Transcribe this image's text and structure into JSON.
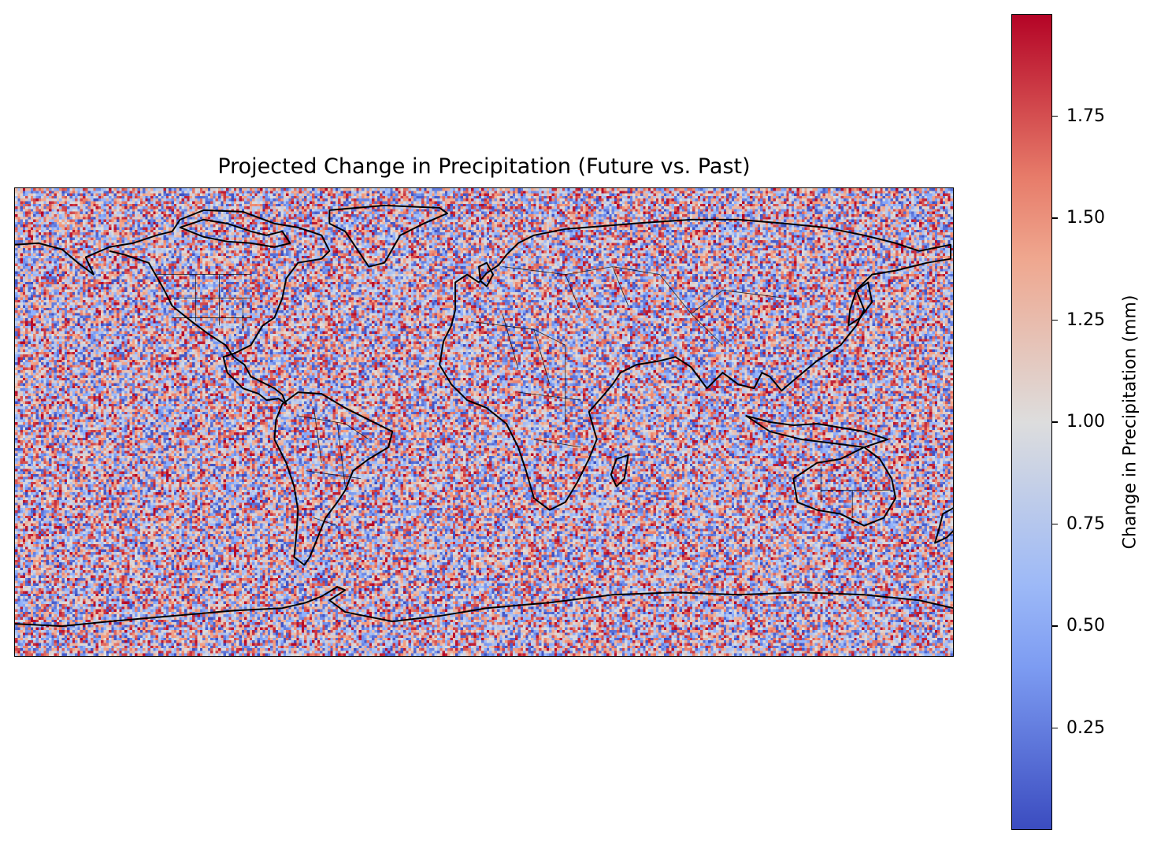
{
  "chart_data": {
    "type": "heatmap",
    "title": "Projected Change in Precipitation (Future vs. Past)",
    "projection": "PlateCarree (global map with coastlines and borders)",
    "x": {
      "label": "",
      "range": [
        -180,
        180
      ],
      "unit": "longitude"
    },
    "y": {
      "label": "",
      "range": [
        -90,
        90
      ],
      "unit": "latitude"
    },
    "grid": false,
    "values": "random field, uniform noise between 0 and 2",
    "colormap": "coolwarm",
    "colorbar": {
      "label": "Change in Precipitation (mm)",
      "range": [
        0.0,
        2.0
      ],
      "ticks": [
        "0.25",
        "0.50",
        "0.75",
        "1.00",
        "1.25",
        "1.50",
        "1.75"
      ],
      "placement": "right"
    }
  }
}
